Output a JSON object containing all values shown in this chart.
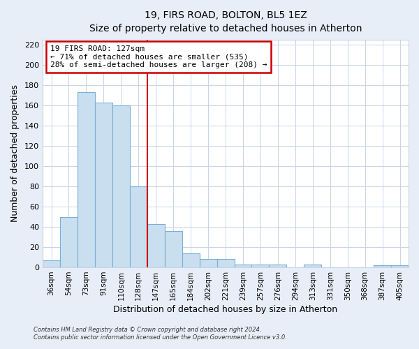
{
  "title": "19, FIRS ROAD, BOLTON, BL5 1EZ",
  "subtitle": "Size of property relative to detached houses in Atherton",
  "xlabel": "Distribution of detached houses by size in Atherton",
  "ylabel": "Number of detached properties",
  "bar_labels": [
    "36sqm",
    "54sqm",
    "73sqm",
    "91sqm",
    "110sqm",
    "128sqm",
    "147sqm",
    "165sqm",
    "184sqm",
    "202sqm",
    "221sqm",
    "239sqm",
    "257sqm",
    "276sqm",
    "294sqm",
    "313sqm",
    "331sqm",
    "350sqm",
    "368sqm",
    "387sqm",
    "405sqm"
  ],
  "bar_values": [
    7,
    50,
    173,
    163,
    160,
    80,
    43,
    36,
    14,
    8,
    8,
    3,
    3,
    3,
    0,
    3,
    0,
    0,
    0,
    2,
    2
  ],
  "bar_color": "#c9dff0",
  "bar_edge_color": "#7bafd4",
  "highlight_index": 5,
  "highlight_line_color": "#cc0000",
  "annotation_text": "19 FIRS ROAD: 127sqm\n← 71% of detached houses are smaller (535)\n28% of semi-detached houses are larger (208) →",
  "annotation_box_color": "#ffffff",
  "annotation_box_edge_color": "#cc0000",
  "ylim": [
    0,
    225
  ],
  "yticks": [
    0,
    20,
    40,
    60,
    80,
    100,
    120,
    140,
    160,
    180,
    200,
    220
  ],
  "footer_line1": "Contains HM Land Registry data © Crown copyright and database right 2024.",
  "footer_line2": "Contains public sector information licensed under the Open Government Licence v3.0.",
  "background_color": "#e8eef8",
  "plot_bg_color": "#ffffff",
  "grid_color": "#c8d4e8"
}
